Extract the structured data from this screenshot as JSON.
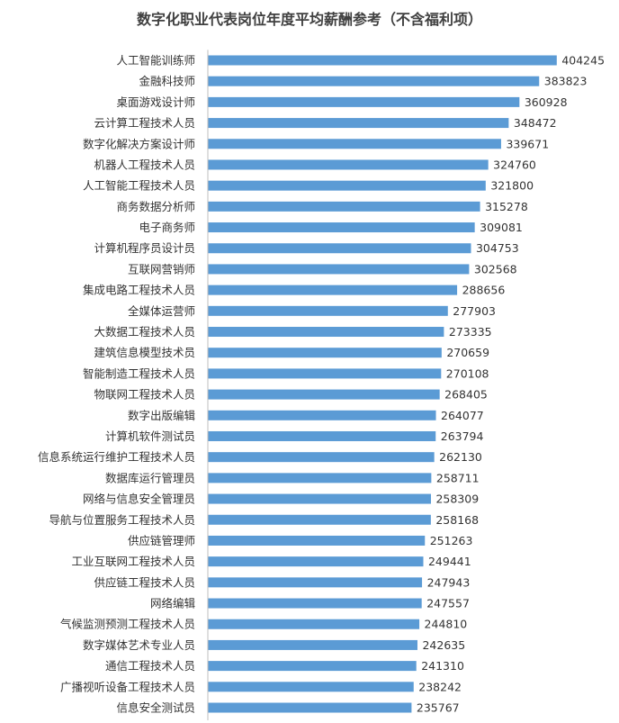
{
  "chart_data": {
    "type": "bar",
    "orientation": "horizontal",
    "title": "数字化职业代表岗位年度平均薪酬参考（不含福利项）",
    "bar_color": "#5B9BD5",
    "axis_color": "#BFBFBF",
    "xlim": [
      0,
      430000
    ],
    "grid": false,
    "categories": [
      "人工智能训练师",
      "金融科技师",
      "桌面游戏设计师",
      "云计算工程技术人员",
      "数字化解决方案设计师",
      "机器人工程技术人员",
      "人工智能工程技术人员",
      "商务数据分析师",
      "电子商务师",
      "计算机程序员设计员",
      "互联网营销师",
      "集成电路工程技术人员",
      "全媒体运营师",
      "大数据工程技术人员",
      "建筑信息模型技术员",
      "智能制造工程技术人员",
      "物联网工程技术人员",
      "数字出版编辑",
      "计算机软件测试员",
      "信息系统运行维护工程技术人员",
      "数据库运行管理员",
      "网络与信息安全管理员",
      "导航与位置服务工程技术人员",
      "供应链管理师",
      "工业互联网工程技术人员",
      "供应链工程技术人员",
      "网络编辑",
      "气候监测预测工程技术人员",
      "数字媒体艺术专业人员",
      "通信工程技术人员",
      "广播视听设备工程技术人员",
      "信息安全测试员"
    ],
    "values": [
      404245,
      383823,
      360928,
      348472,
      339671,
      324760,
      321800,
      315278,
      309081,
      304753,
      302568,
      288656,
      277903,
      273335,
      270659,
      270108,
      268405,
      264077,
      263794,
      262130,
      258711,
      258309,
      258168,
      251263,
      249441,
      247943,
      247557,
      244810,
      242635,
      241310,
      238242,
      235767
    ]
  }
}
